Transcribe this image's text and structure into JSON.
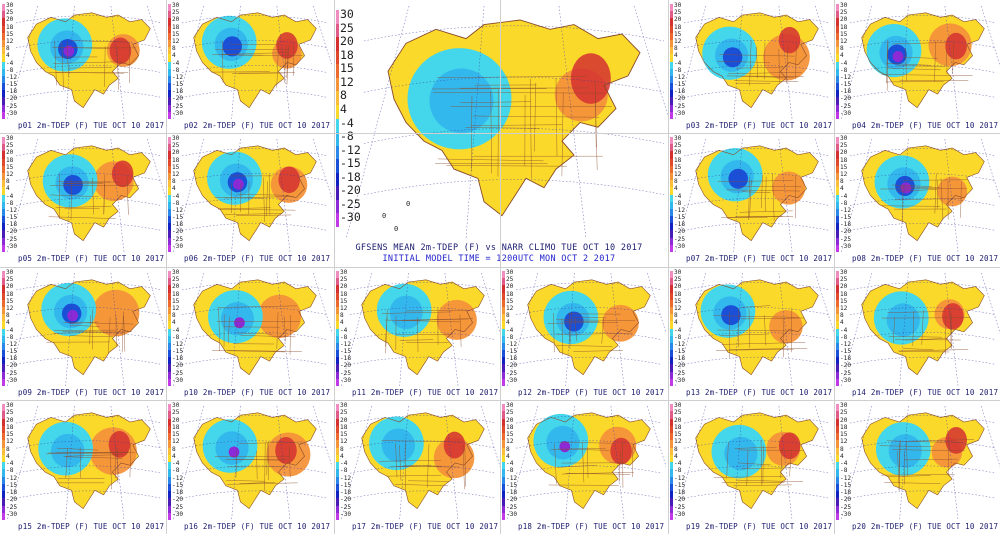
{
  "legend_levels": [
    "30",
    "25",
    "20",
    "18",
    "15",
    "12",
    "8",
    "4",
    "-4",
    "-8",
    "-12",
    "-15",
    "-18",
    "-20",
    "-25",
    "-30"
  ],
  "big_legend_levels": [
    "30",
    "25",
    "20",
    "18",
    "15",
    "12",
    "8",
    "4",
    "-4",
    "-8",
    "-12",
    "-15",
    "-18",
    "-20",
    "-25",
    "-30"
  ],
  "legend_colors": [
    "#f08cc0",
    "#e05c88",
    "#d43030",
    "#e04a2a",
    "#ec6a2e",
    "#f4943a",
    "#fbbd3a",
    "#fbd92a",
    "#44d6ea",
    "#33b8ee",
    "#2a88e8",
    "#1a50d8",
    "#1222c2",
    "#4a1cb6",
    "#8c2ad6",
    "#c23ae8"
  ],
  "member_caption_suffix": "2m-TDEP (F) TUE OCT 10 2017",
  "members": [
    "p01",
    "p02",
    "p03",
    "p04",
    "p05",
    "p06",
    "p07",
    "p08",
    "p09",
    "p10",
    "p11",
    "p12",
    "p13",
    "p14",
    "p15",
    "p16",
    "p17",
    "p18",
    "p19",
    "p20"
  ],
  "mean_panel": {
    "title": "GFSENS MEAN 2m-TDEP (F) vs NARR CLIMO TUE OCT 10 2017",
    "subtitle": "INITIAL MODEL TIME = 1200UTC MON OCT 2 2017",
    "map_labels": [
      "0",
      "0",
      "0"
    ]
  },
  "colors": {
    "anomaly_cold": "#3aa6ea",
    "anomaly_warm": "#f08a3a",
    "title_text": "#1a1a6e",
    "subtitle_text": "#2222cc",
    "border_lines": "#8a4a2a",
    "grid_lines": "#3a3aa0"
  }
}
